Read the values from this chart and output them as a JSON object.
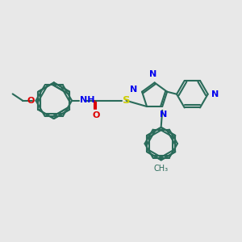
{
  "bg_color": "#e8e8e8",
  "bond_color": "#2a6b5a",
  "N_color": "#0000ee",
  "O_color": "#dd0000",
  "S_color": "#cccc00",
  "lw": 1.5,
  "fs": 8.0,
  "xlim": [
    0,
    10
  ],
  "ylim": [
    0,
    10
  ]
}
